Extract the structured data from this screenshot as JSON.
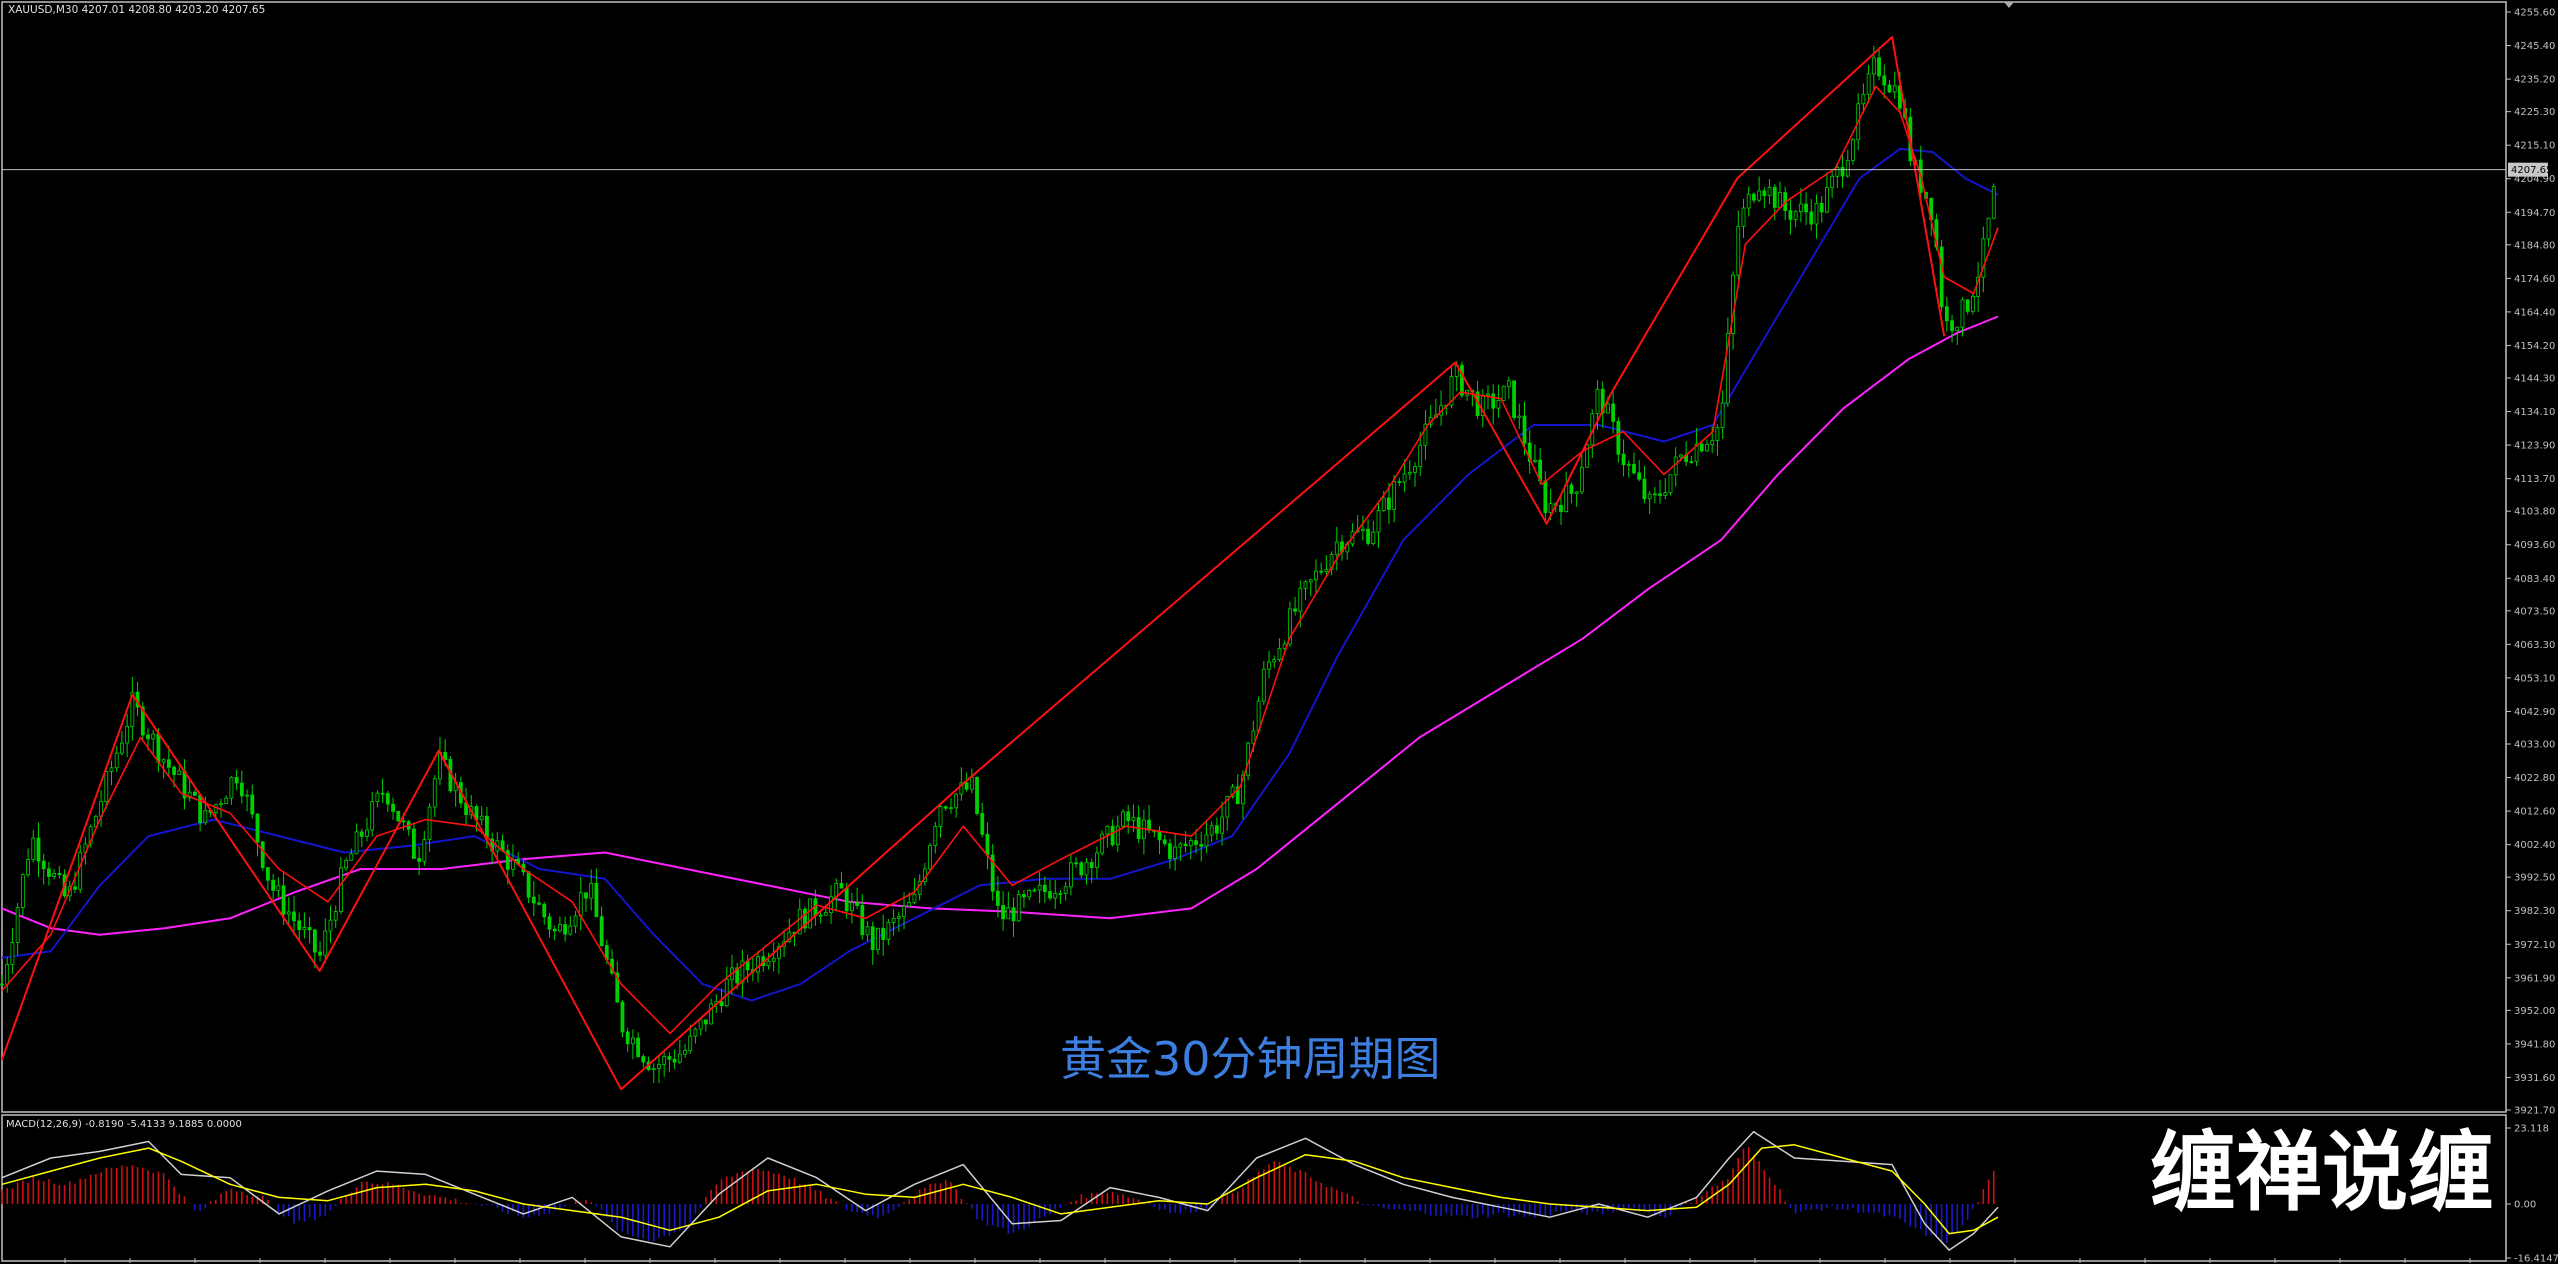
{
  "chart_header": "XAUUSD,M30  4207.01 4208.80 4203.20 4207.65",
  "current_price_label": "4207.65",
  "watermark_caption": "黄金30分钟周期图",
  "brand_logo_text": "缠禅说缠",
  "colors": {
    "background": "#000000",
    "candle": "#00d000",
    "zigzag": "#ff1010",
    "ma_fast": "#ff1010",
    "ma_mid": "#1414cc",
    "ma_slow": "#ff22ff",
    "macd_hist_pos": "#cc1111",
    "macd_hist_neg": "#1a1acc",
    "macd_signal": "#ffff00",
    "macd_line": "#d0d0d0",
    "caption": "#3d7fe0",
    "price_line": "#c0c0c0",
    "grid_text": "#c0c0c0"
  },
  "chart_data": [
    {
      "type": "candlestick",
      "symbol": "XAUUSD",
      "timeframe": "M30",
      "ohlc_last": {
        "open": 4207.01,
        "high": 4208.8,
        "low": 4203.2,
        "close": 4207.65
      },
      "ylim": [
        3921.7,
        4255.6
      ],
      "y_ticks": [
        "4255.60",
        "4245.40",
        "4235.20",
        "4225.30",
        "4215.10",
        "4204.90",
        "4194.70",
        "4184.80",
        "4174.60",
        "4164.40",
        "4154.20",
        "4144.30",
        "4134.10",
        "4123.90",
        "4113.70",
        "4103.80",
        "4093.60",
        "4083.40",
        "4073.50",
        "4063.30",
        "4053.10",
        "4042.90",
        "4033.00",
        "4022.80",
        "4012.60",
        "4002.40",
        "3992.50",
        "3982.30",
        "3972.10",
        "3961.90",
        "3952.00",
        "3941.80",
        "3931.60",
        "3921.70"
      ],
      "price_path": [
        [
          0,
          3960
        ],
        [
          18,
          4005
        ],
        [
          40,
          3985
        ],
        [
          80,
          4045
        ],
        [
          100,
          4028
        ],
        [
          125,
          4010
        ],
        [
          145,
          4025
        ],
        [
          165,
          3990
        ],
        [
          195,
          3968
        ],
        [
          210,
          3995
        ],
        [
          235,
          4020
        ],
        [
          255,
          3998
        ],
        [
          268,
          4028
        ],
        [
          290,
          4010
        ],
        [
          315,
          3995
        ],
        [
          340,
          3975
        ],
        [
          360,
          3990
        ],
        [
          380,
          3948
        ],
        [
          400,
          3935
        ],
        [
          420,
          3940
        ],
        [
          445,
          3960
        ],
        [
          470,
          3970
        ],
        [
          490,
          3980
        ],
        [
          515,
          3988
        ],
        [
          535,
          3972
        ],
        [
          560,
          3985
        ],
        [
          575,
          4015
        ],
        [
          595,
          4020
        ],
        [
          612,
          3980
        ],
        [
          630,
          3985
        ],
        [
          660,
          3995
        ],
        [
          690,
          4010
        ],
        [
          720,
          4000
        ],
        [
          745,
          4008
        ],
        [
          760,
          4020
        ],
        [
          775,
          4055
        ],
        [
          795,
          4075
        ],
        [
          820,
          4095
        ],
        [
          840,
          4098
        ],
        [
          860,
          4115
        ],
        [
          875,
          4128
        ],
        [
          892,
          4145
        ],
        [
          908,
          4135
        ],
        [
          925,
          4140
        ],
        [
          948,
          4105
        ],
        [
          965,
          4110
        ],
        [
          980,
          4140
        ],
        [
          995,
          4120
        ],
        [
          1012,
          4105
        ],
        [
          1030,
          4120
        ],
        [
          1055,
          4130
        ],
        [
          1065,
          4190
        ],
        [
          1078,
          4205
        ],
        [
          1095,
          4195
        ],
        [
          1115,
          4195
        ],
        [
          1130,
          4210
        ],
        [
          1150,
          4240
        ],
        [
          1165,
          4230
        ],
        [
          1172,
          4210
        ],
        [
          1185,
          4195
        ],
        [
          1192,
          4160
        ],
        [
          1205,
          4165
        ],
        [
          1215,
          4180
        ],
        [
          1225,
          4207
        ]
      ],
      "zigzag": [
        [
          0,
          3937
        ],
        [
          80,
          4048
        ],
        [
          195,
          3964
        ],
        [
          268,
          4031
        ],
        [
          380,
          3928
        ],
        [
          590,
          4021
        ],
        [
          892,
          4149
        ],
        [
          948,
          4100
        ],
        [
          988,
          4140
        ],
        [
          1065,
          4205
        ],
        [
          1160,
          4248
        ],
        [
          1192,
          4157
        ]
      ],
      "ma_fast": [
        [
          0,
          3958
        ],
        [
          30,
          3975
        ],
        [
          60,
          4010
        ],
        [
          85,
          4035
        ],
        [
          110,
          4018
        ],
        [
          140,
          4012
        ],
        [
          170,
          3995
        ],
        [
          200,
          3985
        ],
        [
          230,
          4005
        ],
        [
          260,
          4010
        ],
        [
          290,
          4008
        ],
        [
          320,
          3995
        ],
        [
          350,
          3985
        ],
        [
          380,
          3960
        ],
        [
          410,
          3945
        ],
        [
          440,
          3960
        ],
        [
          470,
          3972
        ],
        [
          500,
          3984
        ],
        [
          530,
          3980
        ],
        [
          560,
          3988
        ],
        [
          590,
          4008
        ],
        [
          620,
          3990
        ],
        [
          650,
          3998
        ],
        [
          690,
          4008
        ],
        [
          730,
          4005
        ],
        [
          760,
          4020
        ],
        [
          790,
          4065
        ],
        [
          820,
          4090
        ],
        [
          850,
          4110
        ],
        [
          875,
          4130
        ],
        [
          895,
          4140
        ],
        [
          920,
          4138
        ],
        [
          945,
          4112
        ],
        [
          970,
          4122
        ],
        [
          995,
          4128
        ],
        [
          1020,
          4115
        ],
        [
          1050,
          4128
        ],
        [
          1070,
          4185
        ],
        [
          1095,
          4198
        ],
        [
          1125,
          4208
        ],
        [
          1150,
          4233
        ],
        [
          1165,
          4225
        ],
        [
          1178,
          4205
        ],
        [
          1192,
          4175
        ],
        [
          1210,
          4170
        ],
        [
          1225,
          4190
        ]
      ],
      "ma_mid": [
        [
          0,
          3968
        ],
        [
          30,
          3970
        ],
        [
          60,
          3990
        ],
        [
          90,
          4005
        ],
        [
          130,
          4010
        ],
        [
          170,
          4005
        ],
        [
          210,
          4000
        ],
        [
          250,
          4002
        ],
        [
          290,
          4005
        ],
        [
          330,
          3995
        ],
        [
          370,
          3992
        ],
        [
          400,
          3975
        ],
        [
          430,
          3960
        ],
        [
          460,
          3955
        ],
        [
          490,
          3960
        ],
        [
          520,
          3970
        ],
        [
          560,
          3980
        ],
        [
          600,
          3990
        ],
        [
          640,
          3992
        ],
        [
          680,
          3992
        ],
        [
          720,
          3998
        ],
        [
          755,
          4005
        ],
        [
          790,
          4030
        ],
        [
          820,
          4060
        ],
        [
          860,
          4095
        ],
        [
          900,
          4115
        ],
        [
          940,
          4130
        ],
        [
          980,
          4130
        ],
        [
          1020,
          4125
        ],
        [
          1050,
          4130
        ],
        [
          1080,
          4155
        ],
        [
          1110,
          4180
        ],
        [
          1140,
          4205
        ],
        [
          1165,
          4214
        ],
        [
          1185,
          4213
        ],
        [
          1205,
          4205
        ],
        [
          1225,
          4200
        ]
      ],
      "ma_slow": [
        [
          0,
          3983
        ],
        [
          30,
          3977
        ],
        [
          60,
          3975
        ],
        [
          100,
          3977
        ],
        [
          140,
          3980
        ],
        [
          180,
          3988
        ],
        [
          220,
          3995
        ],
        [
          270,
          3995
        ],
        [
          320,
          3998
        ],
        [
          370,
          4000
        ],
        [
          420,
          3995
        ],
        [
          470,
          3990
        ],
        [
          520,
          3985
        ],
        [
          570,
          3983
        ],
        [
          620,
          3982
        ],
        [
          680,
          3980
        ],
        [
          730,
          3983
        ],
        [
          770,
          3995
        ],
        [
          820,
          4015
        ],
        [
          870,
          4035
        ],
        [
          920,
          4050
        ],
        [
          970,
          4065
        ],
        [
          1010,
          4080
        ],
        [
          1055,
          4095
        ],
        [
          1090,
          4115
        ],
        [
          1130,
          4135
        ],
        [
          1170,
          4150
        ],
        [
          1200,
          4158
        ],
        [
          1225,
          4163
        ]
      ]
    },
    {
      "type": "macd",
      "label": "MACD(12,26,9) -0.8190 -5.4133 9.1885 0.0000",
      "params": [
        12,
        26,
        9
      ],
      "values": {
        "main": -0.819,
        "signal": -5.4133,
        "histogram": 9.1885,
        "level": 0.0
      },
      "ylim": [
        -16.4147,
        23.118
      ],
      "y_ticks": [
        "23.118",
        "0.00",
        "-16.4147"
      ],
      "histogram": [
        [
          0,
          4
        ],
        [
          20,
          8
        ],
        [
          40,
          6
        ],
        [
          60,
          10
        ],
        [
          80,
          12
        ],
        [
          100,
          9
        ],
        [
          120,
          -3
        ],
        [
          140,
          5
        ],
        [
          160,
          2
        ],
        [
          180,
          -6
        ],
        [
          200,
          -3
        ],
        [
          220,
          7
        ],
        [
          240,
          6
        ],
        [
          260,
          3
        ],
        [
          280,
          1
        ],
        [
          300,
          -1
        ],
        [
          320,
          -4
        ],
        [
          340,
          -2
        ],
        [
          360,
          2
        ],
        [
          380,
          -9
        ],
        [
          400,
          -11
        ],
        [
          420,
          -7
        ],
        [
          440,
          7
        ],
        [
          460,
          11
        ],
        [
          480,
          9
        ],
        [
          500,
          4
        ],
        [
          520,
          -2
        ],
        [
          540,
          -4
        ],
        [
          560,
          3
        ],
        [
          580,
          8
        ],
        [
          600,
          -5
        ],
        [
          620,
          -9
        ],
        [
          640,
          -4
        ],
        [
          660,
          2
        ],
        [
          680,
          4
        ],
        [
          700,
          1
        ],
        [
          720,
          -3
        ],
        [
          740,
          -1
        ],
        [
          760,
          5
        ],
        [
          780,
          13
        ],
        [
          800,
          9
        ],
        [
          820,
          4
        ],
        [
          840,
          -1
        ],
        [
          860,
          -2
        ],
        [
          880,
          -3
        ],
        [
          900,
          -4
        ],
        [
          920,
          -3
        ],
        [
          940,
          -4
        ],
        [
          960,
          -2
        ],
        [
          980,
          -3
        ],
        [
          1000,
          -1
        ],
        [
          1020,
          -4
        ],
        [
          1040,
          2
        ],
        [
          1060,
          8
        ],
        [
          1070,
          18
        ],
        [
          1080,
          12
        ],
        [
          1090,
          5
        ],
        [
          1100,
          -3
        ],
        [
          1120,
          -1
        ],
        [
          1140,
          -2
        ],
        [
          1160,
          -4
        ],
        [
          1180,
          -9
        ],
        [
          1192,
          -12
        ],
        [
          1205,
          -6
        ],
        [
          1225,
          12
        ]
      ],
      "signal": [
        [
          0,
          6
        ],
        [
          30,
          10
        ],
        [
          60,
          14
        ],
        [
          90,
          17
        ],
        [
          110,
          13
        ],
        [
          140,
          6
        ],
        [
          170,
          2
        ],
        [
          200,
          1
        ],
        [
          230,
          5
        ],
        [
          260,
          6
        ],
        [
          290,
          4
        ],
        [
          320,
          0
        ],
        [
          350,
          -2
        ],
        [
          380,
          -4
        ],
        [
          410,
          -8
        ],
        [
          440,
          -4
        ],
        [
          470,
          4
        ],
        [
          500,
          6
        ],
        [
          530,
          3
        ],
        [
          560,
          2
        ],
        [
          590,
          6
        ],
        [
          620,
          2
        ],
        [
          650,
          -3
        ],
        [
          680,
          -1
        ],
        [
          710,
          1
        ],
        [
          740,
          0
        ],
        [
          770,
          8
        ],
        [
          800,
          15
        ],
        [
          830,
          13
        ],
        [
          860,
          8
        ],
        [
          890,
          5
        ],
        [
          920,
          2
        ],
        [
          950,
          0
        ],
        [
          980,
          -1
        ],
        [
          1010,
          -2
        ],
        [
          1040,
          -1
        ],
        [
          1060,
          6
        ],
        [
          1080,
          17
        ],
        [
          1100,
          18
        ],
        [
          1130,
          14
        ],
        [
          1160,
          10
        ],
        [
          1180,
          0
        ],
        [
          1195,
          -9
        ],
        [
          1210,
          -8
        ],
        [
          1225,
          -4
        ]
      ],
      "main": [
        [
          0,
          8
        ],
        [
          30,
          14
        ],
        [
          60,
          16
        ],
        [
          90,
          19
        ],
        [
          110,
          9
        ],
        [
          140,
          8
        ],
        [
          170,
          -3
        ],
        [
          200,
          4
        ],
        [
          230,
          10
        ],
        [
          260,
          9
        ],
        [
          290,
          3
        ],
        [
          320,
          -3
        ],
        [
          350,
          2
        ],
        [
          380,
          -10
        ],
        [
          410,
          -13
        ],
        [
          440,
          3
        ],
        [
          470,
          14
        ],
        [
          500,
          8
        ],
        [
          530,
          -2
        ],
        [
          560,
          6
        ],
        [
          590,
          12
        ],
        [
          620,
          -6
        ],
        [
          650,
          -5
        ],
        [
          680,
          5
        ],
        [
          710,
          2
        ],
        [
          740,
          -2
        ],
        [
          770,
          14
        ],
        [
          800,
          20
        ],
        [
          830,
          12
        ],
        [
          860,
          6
        ],
        [
          890,
          2
        ],
        [
          920,
          -1
        ],
        [
          950,
          -4
        ],
        [
          980,
          0
        ],
        [
          1010,
          -4
        ],
        [
          1040,
          2
        ],
        [
          1060,
          14
        ],
        [
          1075,
          22
        ],
        [
          1100,
          14
        ],
        [
          1130,
          13
        ],
        [
          1160,
          12
        ],
        [
          1180,
          -6
        ],
        [
          1195,
          -14
        ],
        [
          1210,
          -9
        ],
        [
          1225,
          -1
        ]
      ]
    }
  ]
}
